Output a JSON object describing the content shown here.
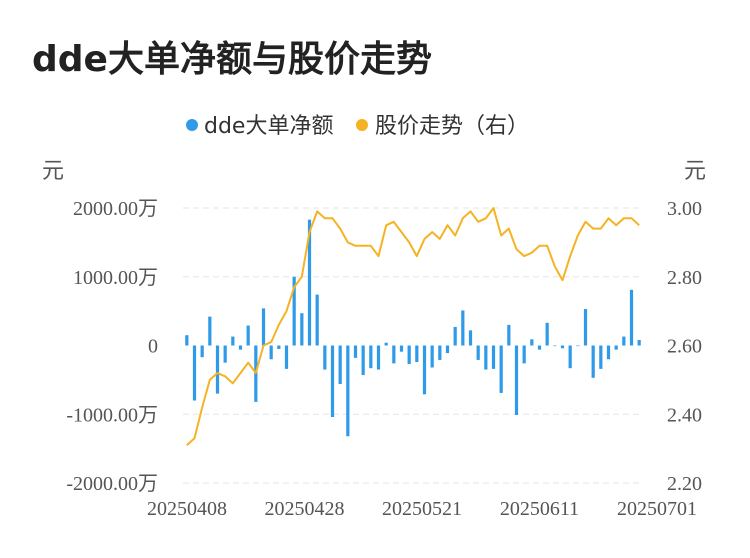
{
  "title": "dde大单净额与股价走势",
  "chart_data": {
    "type": "bar+line",
    "legend": [
      {
        "name": "dde大单净额",
        "color": "#2f9be8"
      },
      {
        "name": "股价走势（右）",
        "color": "#f5b324"
      }
    ],
    "left_unit": "元",
    "right_unit": "元",
    "left_ticks": [
      "2000.00万",
      "1000.00万",
      "0",
      "-1000.00万",
      "-2000.00万"
    ],
    "left_ylim": [
      -2000,
      2000
    ],
    "right_ticks": [
      "3.00",
      "2.80",
      "2.60",
      "2.40",
      "2.20"
    ],
    "right_ylim": [
      2.2,
      3.0
    ],
    "x_tick_labels": [
      "20250408",
      "20250428",
      "20250521",
      "20250611",
      "20250701"
    ],
    "grid": true,
    "series": [
      {
        "name": "dde大单净额",
        "type": "bar",
        "unit": "万",
        "values": [
          150,
          -800,
          -170,
          420,
          -700,
          -250,
          130,
          -60,
          290,
          -820,
          540,
          -200,
          -50,
          -340,
          1000,
          470,
          1830,
          740,
          -350,
          -1040,
          -560,
          -1320,
          -180,
          -430,
          -330,
          -350,
          40,
          -260,
          -90,
          -270,
          -240,
          -710,
          -320,
          -210,
          -110,
          270,
          510,
          220,
          -210,
          -350,
          -340,
          -690,
          300,
          -1010,
          -260,
          90,
          -60,
          330,
          0,
          -40,
          -330,
          0,
          530,
          -470,
          -340,
          -200,
          -60,
          130,
          810,
          80
        ]
      },
      {
        "name": "股价走势（右）",
        "type": "line",
        "values": [
          2.31,
          2.33,
          2.42,
          2.5,
          2.52,
          2.51,
          2.49,
          2.52,
          2.55,
          2.52,
          2.6,
          2.61,
          2.66,
          2.7,
          2.77,
          2.8,
          2.93,
          2.99,
          2.97,
          2.97,
          2.94,
          2.9,
          2.89,
          2.89,
          2.89,
          2.86,
          2.95,
          2.96,
          2.93,
          2.9,
          2.86,
          2.91,
          2.93,
          2.91,
          2.95,
          2.92,
          2.97,
          2.99,
          2.96,
          2.97,
          3.0,
          2.92,
          2.94,
          2.88,
          2.86,
          2.87,
          2.89,
          2.89,
          2.83,
          2.79,
          2.86,
          2.92,
          2.96,
          2.94,
          2.94,
          2.97,
          2.95,
          2.97,
          2.97,
          2.95
        ]
      }
    ]
  }
}
